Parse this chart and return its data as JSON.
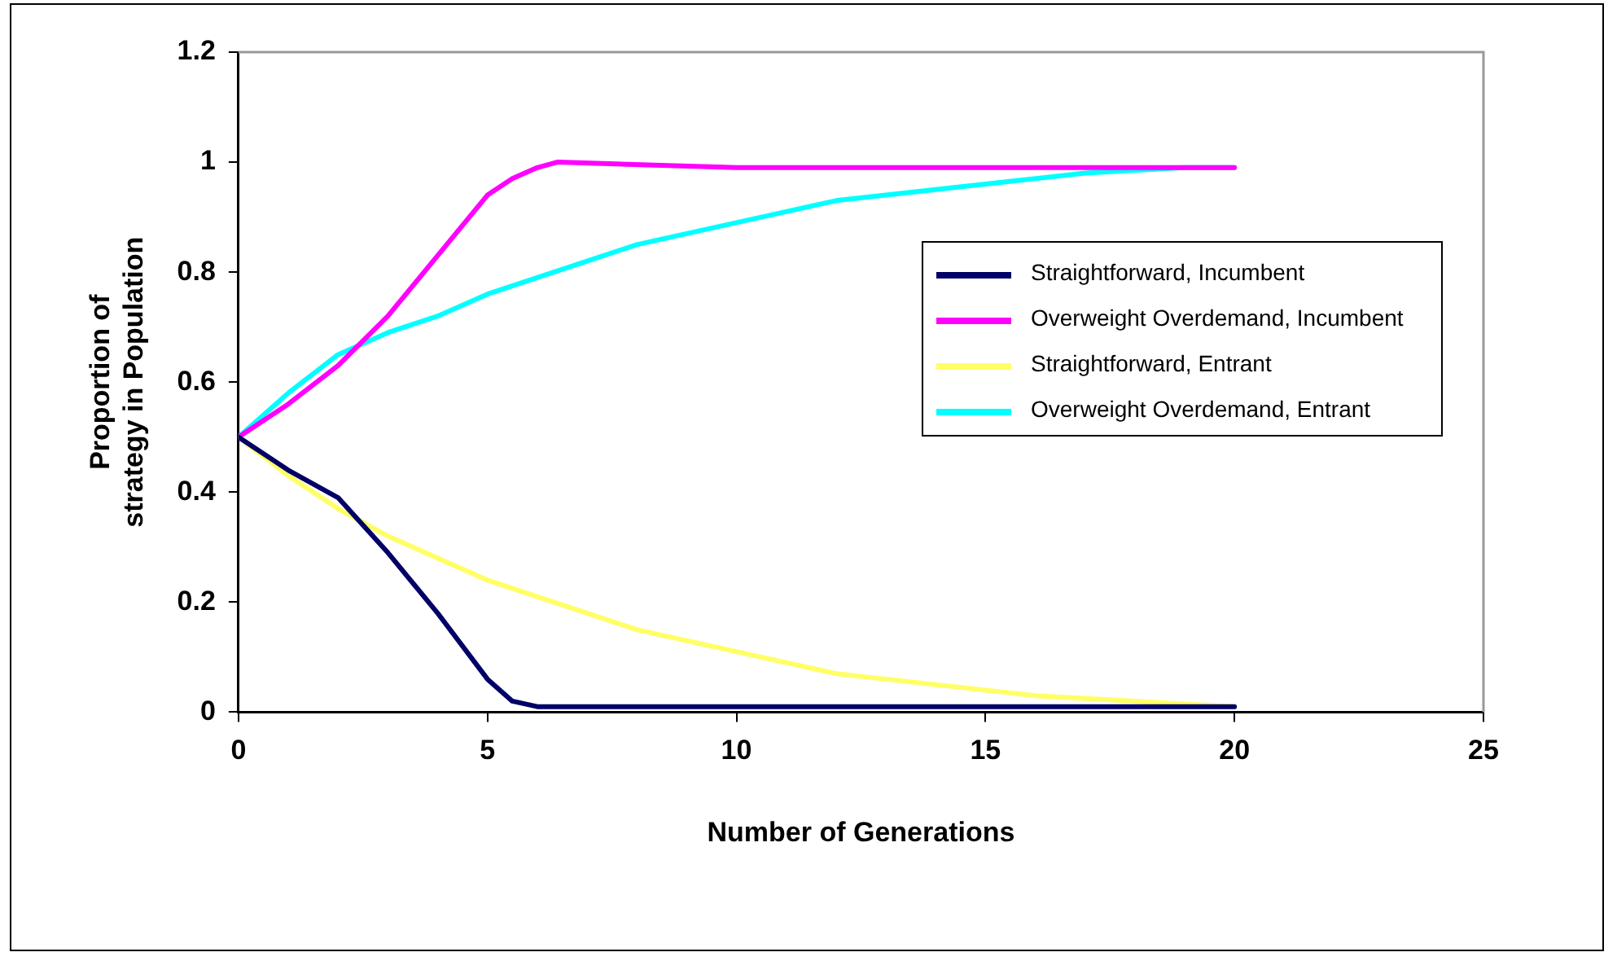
{
  "chart_data": {
    "type": "line",
    "xlabel": "Number of Generations",
    "ylabel": "Proportion of strategy in Population",
    "xlim": [
      0,
      25
    ],
    "xticks": [
      0,
      5,
      10,
      15,
      20,
      25
    ],
    "ylim": [
      0,
      1.2
    ],
    "yticks": [
      0,
      0.2,
      0.4,
      0.6,
      0.8,
      1,
      1.2
    ],
    "grid": false,
    "legend": "right",
    "marker": "none",
    "line_style": "solid",
    "series": [
      {
        "name": "Straightforward, Incumbent",
        "color": "#000066",
        "x": [
          0,
          1,
          2,
          3,
          4,
          5,
          5.5,
          6,
          10,
          15,
          20
        ],
        "values": [
          0.5,
          0.44,
          0.39,
          0.29,
          0.18,
          0.06,
          0.02,
          0.01,
          0.01,
          0.01,
          0.01
        ]
      },
      {
        "name": "Overweight Overdemand, Incumbent",
        "color": "#ff00ff",
        "x": [
          0,
          1,
          2,
          3,
          4,
          5,
          5.5,
          6,
          6.4,
          10,
          15,
          20
        ],
        "values": [
          0.5,
          0.56,
          0.63,
          0.72,
          0.83,
          0.94,
          0.97,
          0.99,
          1,
          0.99,
          0.99,
          0.99
        ]
      },
      {
        "name": "Straightforward, Entrant",
        "color": "#ffff66",
        "x": [
          0,
          1,
          2,
          3,
          4,
          5,
          6,
          7,
          8,
          9,
          10,
          11,
          12,
          14,
          16,
          18,
          20
        ],
        "values": [
          0.5,
          0.43,
          0.37,
          0.32,
          0.28,
          0.24,
          0.21,
          0.18,
          0.15,
          0.13,
          0.11,
          0.09,
          0.07,
          0.05,
          0.03,
          0.02,
          0.01
        ]
      },
      {
        "name": "Overweight Overdemand, Entrant",
        "color": "#00ffff",
        "x": [
          0,
          1,
          2,
          3,
          4,
          5,
          6,
          7,
          8,
          9,
          10,
          11,
          12,
          13,
          15,
          17,
          19,
          20
        ],
        "values": [
          0.5,
          0.58,
          0.65,
          0.69,
          0.72,
          0.76,
          0.79,
          0.82,
          0.85,
          0.87,
          0.89,
          0.91,
          0.93,
          0.94,
          0.96,
          0.98,
          0.99,
          0.99
        ]
      }
    ]
  }
}
